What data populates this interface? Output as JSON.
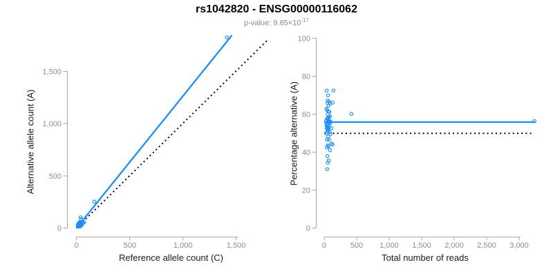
{
  "header": {
    "title": "rs1042820 - ENSG00000116062",
    "subtitle_base": "p-value: 9.65×10",
    "subtitle_exponent": "-17"
  },
  "colors": {
    "accent_blue": "#1E90FF",
    "reference_black": "#000000",
    "axis_line": "#a6a6a6",
    "tick_label": "#8c8c8c"
  },
  "chart_data": [
    {
      "type": "scatter",
      "id": "allele-count-scatter",
      "xlabel": "Reference allele count (C)",
      "ylabel": "Alternative allele count (A)",
      "xlim": [
        0,
        1500
      ],
      "ylim": [
        0,
        1500
      ],
      "grid": false,
      "xticks": {
        "values": [
          0,
          500,
          1000,
          1500
        ],
        "labels": [
          "0",
          "500",
          "1,000",
          "1,500"
        ]
      },
      "yticks": {
        "values": [
          0,
          500,
          1000,
          1500
        ],
        "labels": [
          "0",
          "500",
          "1,000",
          "1,500"
        ]
      },
      "lines": [
        {
          "name": "regression-line",
          "x1": 0,
          "y1": 0,
          "x2": 1460,
          "y2": 1845,
          "color": "#1E90FF",
          "dash": false
        },
        {
          "name": "identity-line",
          "x1": 0,
          "y1": 0,
          "x2": 1805,
          "y2": 1810,
          "color": "#000000",
          "dash": true
        }
      ],
      "points": [
        [
          11,
          29
        ],
        [
          18,
          42
        ],
        [
          18,
          37
        ],
        [
          25,
          50
        ],
        [
          31,
          59
        ],
        [
          44,
          86
        ],
        [
          17,
          33
        ],
        [
          23,
          42
        ],
        [
          17,
          28
        ],
        [
          27,
          43
        ],
        [
          13,
          22
        ],
        [
          31,
          49
        ],
        [
          22,
          33
        ],
        [
          167,
          253
        ],
        [
          25,
          35
        ],
        [
          37,
          53
        ],
        [
          19,
          26
        ],
        [
          29,
          41
        ],
        [
          13,
          17
        ],
        [
          37,
          48
        ],
        [
          22,
          28
        ],
        [
          28,
          37
        ],
        [
          44,
          56
        ],
        [
          1412,
          1825
        ],
        [
          18,
          22
        ],
        [
          33,
          42
        ],
        [
          25,
          30
        ],
        [
          40,
          50
        ],
        [
          16,
          19
        ],
        [
          28,
          32
        ],
        [
          37,
          43
        ],
        [
          21,
          24
        ],
        [
          33,
          37
        ],
        [
          52,
          58
        ],
        [
          24,
          26
        ],
        [
          31,
          34
        ],
        [
          19,
          21
        ],
        [
          42,
          43
        ],
        [
          27,
          28
        ],
        [
          15,
          15
        ],
        [
          48,
          47
        ],
        [
          31,
          29
        ],
        [
          24,
          21
        ],
        [
          40,
          35
        ],
        [
          31,
          24
        ],
        [
          37,
          28
        ],
        [
          23,
          17
        ],
        [
          53,
          37
        ],
        [
          31,
          19
        ],
        [
          45,
          25
        ],
        [
          39,
          103
        ],
        [
          36,
          19
        ],
        [
          31,
          14
        ],
        [
          62,
          50
        ],
        [
          71,
          56
        ]
      ]
    },
    {
      "type": "scatter",
      "id": "percentage-scatter",
      "xlabel": "Total number of reads",
      "ylabel": "Percentage alternative (A)",
      "xlim": [
        0,
        3000
      ],
      "ylim": [
        0,
        100
      ],
      "grid": false,
      "xticks": {
        "values": [
          0,
          500,
          1000,
          1500,
          2000,
          2500,
          3000
        ],
        "labels": [
          "0",
          "500",
          "1,000",
          "1,500",
          "2,000",
          "2,500",
          "3,000"
        ]
      },
      "yticks": {
        "values": [
          0,
          20,
          40,
          60,
          80,
          100
        ],
        "labels": [
          "0",
          "20",
          "40",
          "60",
          "80",
          "100"
        ]
      },
      "lines": [
        {
          "name": "mean-percentage-line",
          "x1": 0,
          "y1": 55.9,
          "x2": 3245,
          "y2": 55.9,
          "color": "#1E90FF",
          "dash": false
        },
        {
          "name": "null-percentage-line",
          "x1": 0,
          "y1": 50,
          "x2": 3190,
          "y2": 50,
          "color": "#000000",
          "dash": true
        }
      ],
      "points": [
        [
          40,
          72.5
        ],
        [
          60,
          70.0
        ],
        [
          55,
          67.3
        ],
        [
          75,
          66.7
        ],
        [
          90,
          65.6
        ],
        [
          130,
          66.2
        ],
        [
          50,
          66.0
        ],
        [
          65,
          64.6
        ],
        [
          45,
          62.2
        ],
        [
          70,
          61.4
        ],
        [
          35,
          62.9
        ],
        [
          80,
          61.3
        ],
        [
          55,
          60.0
        ],
        [
          420,
          60.2
        ],
        [
          60,
          58.3
        ],
        [
          90,
          58.9
        ],
        [
          45,
          57.8
        ],
        [
          70,
          58.6
        ],
        [
          30,
          56.7
        ],
        [
          85,
          56.5
        ],
        [
          50,
          56.0
        ],
        [
          65,
          56.9
        ],
        [
          100,
          56.0
        ],
        [
          3237,
          56.4
        ],
        [
          40,
          55.0
        ],
        [
          75,
          56.0
        ],
        [
          55,
          54.5
        ],
        [
          90,
          55.6
        ],
        [
          35,
          54.3
        ],
        [
          60,
          53.3
        ],
        [
          80,
          53.8
        ],
        [
          45,
          53.3
        ],
        [
          70,
          52.9
        ],
        [
          110,
          52.7
        ],
        [
          50,
          52.0
        ],
        [
          65,
          52.3
        ],
        [
          40,
          52.5
        ],
        [
          85,
          50.6
        ],
        [
          55,
          50.9
        ],
        [
          30,
          50.0
        ],
        [
          95,
          49.5
        ],
        [
          60,
          48.3
        ],
        [
          45,
          46.7
        ],
        [
          75,
          46.7
        ],
        [
          55,
          43.6
        ],
        [
          65,
          43.1
        ],
        [
          40,
          42.5
        ],
        [
          90,
          41.1
        ],
        [
          50,
          38.0
        ],
        [
          70,
          35.7
        ],
        [
          142,
          72.5
        ],
        [
          55,
          34.5
        ],
        [
          45,
          31.1
        ],
        [
          112,
          44.6
        ],
        [
          127,
          44.1
        ]
      ]
    }
  ]
}
